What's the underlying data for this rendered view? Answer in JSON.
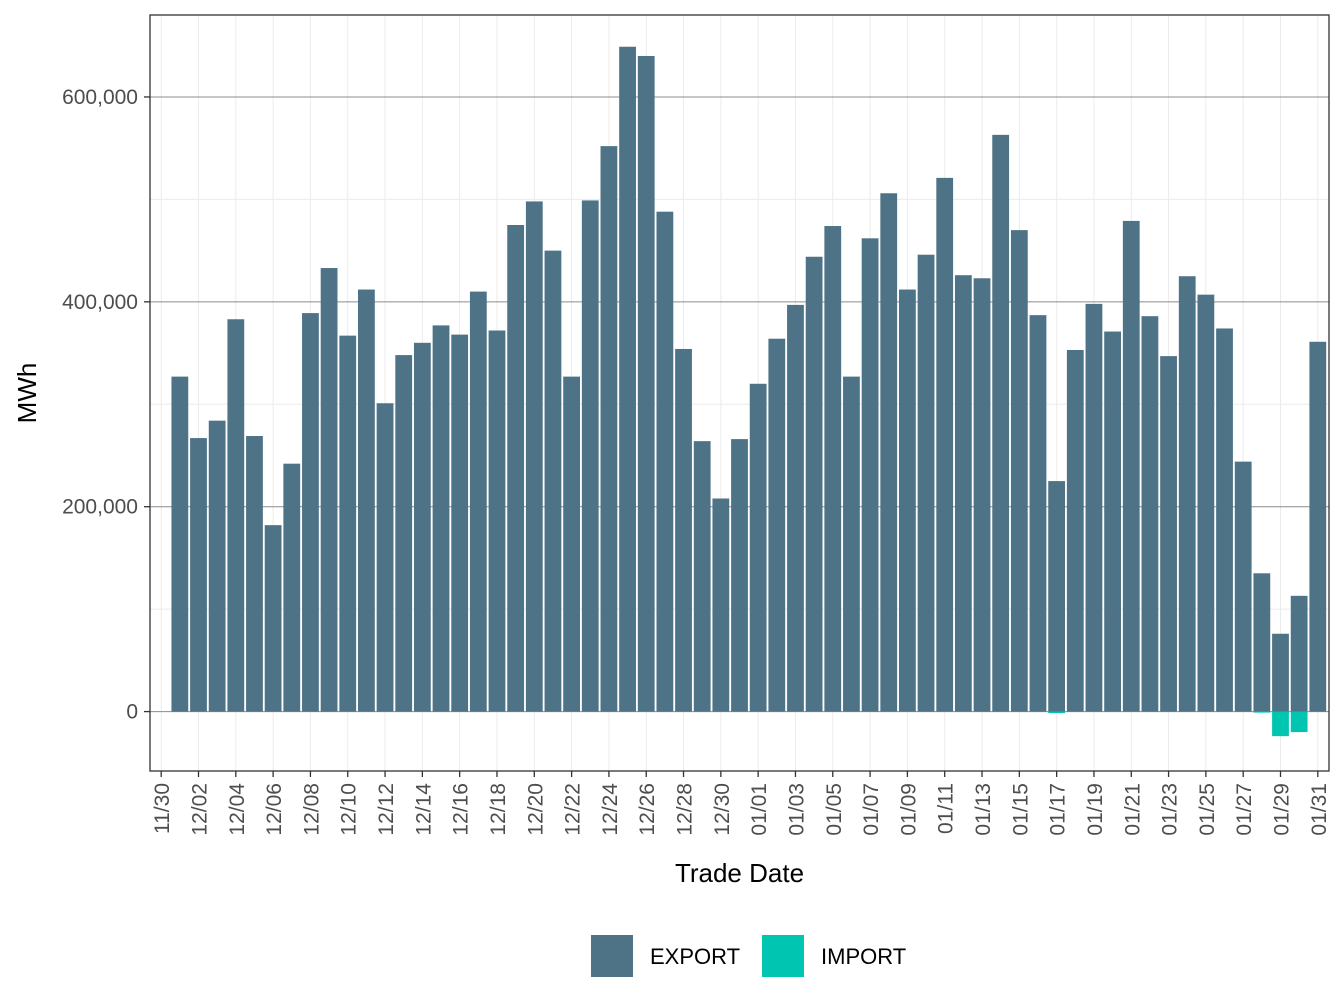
{
  "chart_data": {
    "type": "bar",
    "xlabel": "Trade Date",
    "ylabel": "MWh",
    "ylim": [
      -58000,
      680000
    ],
    "y_ticks": [
      0,
      200000,
      400000,
      600000
    ],
    "y_tick_labels": [
      "0",
      "200,000",
      "400,000",
      "600,000"
    ],
    "categories": [
      "11/30",
      "12/01",
      "12/02",
      "12/03",
      "12/04",
      "12/05",
      "12/06",
      "12/07",
      "12/08",
      "12/09",
      "12/10",
      "12/11",
      "12/12",
      "12/13",
      "12/14",
      "12/15",
      "12/16",
      "12/17",
      "12/18",
      "12/19",
      "12/20",
      "12/21",
      "12/22",
      "12/23",
      "12/24",
      "12/25",
      "12/26",
      "12/27",
      "12/28",
      "12/29",
      "12/30",
      "12/31",
      "01/01",
      "01/02",
      "01/03",
      "01/04",
      "01/05",
      "01/06",
      "01/07",
      "01/08",
      "01/09",
      "01/10",
      "01/11",
      "01/12",
      "01/13",
      "01/14",
      "01/15",
      "01/16",
      "01/17",
      "01/18",
      "01/19",
      "01/20",
      "01/21",
      "01/22",
      "01/23",
      "01/24",
      "01/25",
      "01/26",
      "01/27",
      "01/28",
      "01/29",
      "01/30",
      "01/31"
    ],
    "x_tick_labels": [
      "11/30",
      "12/02",
      "12/04",
      "12/06",
      "12/08",
      "12/10",
      "12/12",
      "12/14",
      "12/16",
      "12/18",
      "12/20",
      "12/22",
      "12/24",
      "12/26",
      "12/28",
      "12/30",
      "01/01",
      "01/03",
      "01/05",
      "01/07",
      "01/09",
      "01/11",
      "01/13",
      "01/15",
      "01/17",
      "01/19",
      "01/21",
      "01/23",
      "01/25",
      "01/27",
      "01/29",
      "01/31"
    ],
    "series": [
      {
        "name": "EXPORT",
        "color": "#4f7386",
        "values": [
          null,
          327000,
          267000,
          284000,
          383000,
          269000,
          182000,
          242000,
          389000,
          433000,
          367000,
          412000,
          301000,
          348000,
          360000,
          377000,
          368000,
          410000,
          372000,
          475000,
          498000,
          450000,
          327000,
          499000,
          552000,
          649000,
          640000,
          488000,
          354000,
          264000,
          208000,
          266000,
          320000,
          364000,
          397000,
          444000,
          474000,
          327000,
          462000,
          506000,
          412000,
          446000,
          521000,
          426000,
          423000,
          563000,
          470000,
          387000,
          225000,
          353000,
          398000,
          371000,
          479000,
          386000,
          347000,
          425000,
          407000,
          374000,
          244000,
          135000,
          76000,
          113000,
          361000
        ]
      },
      {
        "name": "IMPORT",
        "color": "#00c5b0",
        "values": [
          null,
          0,
          0,
          0,
          0,
          0,
          0,
          0,
          0,
          0,
          0,
          0,
          0,
          0,
          0,
          0,
          0,
          0,
          0,
          0,
          0,
          0,
          0,
          0,
          0,
          0,
          0,
          0,
          0,
          0,
          0,
          0,
          0,
          0,
          0,
          0,
          0,
          0,
          0,
          0,
          0,
          0,
          0,
          0,
          0,
          0,
          0,
          0,
          -1500,
          0,
          0,
          0,
          0,
          0,
          0,
          0,
          0,
          0,
          0,
          -1000,
          -24000,
          -20000,
          0
        ]
      }
    ],
    "legend_position": "bottom",
    "grid": true
  }
}
